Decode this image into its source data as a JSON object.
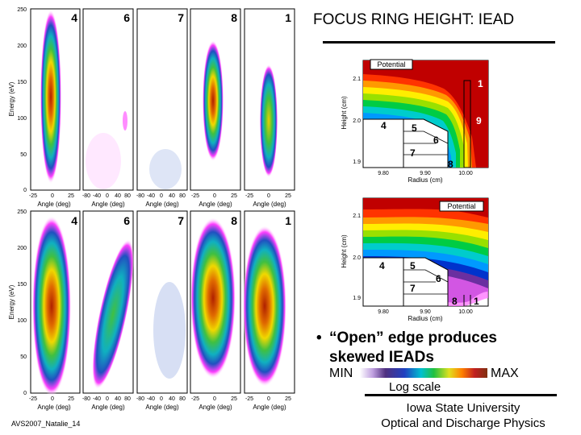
{
  "title": "FOCUS RING HEIGHT: IEAD",
  "iead": {
    "top_row_labels": [
      "4",
      "6",
      "7",
      "8",
      "1"
    ],
    "bottom_row_labels": [
      "4",
      "6",
      "7",
      "8",
      "1"
    ],
    "y_ticks": [
      "250",
      "200",
      "150",
      "100",
      "50",
      "0"
    ],
    "y_label": "Energy (eV)",
    "x_ticks_wide": [
      "-25",
      "0",
      "25"
    ],
    "x_ticks_narrow": [
      "-80",
      "-40",
      "0",
      "40",
      "80"
    ],
    "x_label": "Angle (deg)"
  },
  "geometry_top": {
    "panel_label": "Potential",
    "y_ticks": [
      "2.1",
      "2.0",
      "1.9"
    ],
    "y_label": "Height (cm)",
    "x_ticks": [
      "9.80",
      "9.90",
      "10.00"
    ],
    "x_label": "Radius (cm)",
    "markers": [
      "1",
      "9",
      "4",
      "5",
      "6",
      "7",
      "8"
    ]
  },
  "geometry_bottom": {
    "panel_label": "Potential",
    "y_ticks": [
      "2.1",
      "2.0",
      "1.9"
    ],
    "y_label": "Height (cm)",
    "x_ticks": [
      "9.80",
      "9.90",
      "10.00"
    ],
    "x_label": "Radius (cm)",
    "markers": [
      "4",
      "5",
      "6",
      "7",
      "8",
      "1"
    ]
  },
  "bullet": {
    "symbol": "•",
    "line1": "“Open” edge produces",
    "line2": "skewed IEADs"
  },
  "scale": {
    "min": "MIN",
    "max": "MAX",
    "note": "Log scale"
  },
  "affiliation": {
    "line1": "Iowa State University",
    "line2": "Optical and Discharge Physics"
  },
  "footer": "AVS2007_Natalie_14",
  "colors": {
    "contour": [
      "#ffffff",
      "#ff66ff",
      "#6a2fa0",
      "#0033cc",
      "#0099ff",
      "#00cccc",
      "#00cc44",
      "#99e000",
      "#ffee00",
      "#ff9900",
      "#ff3300",
      "#cc0000"
    ]
  }
}
